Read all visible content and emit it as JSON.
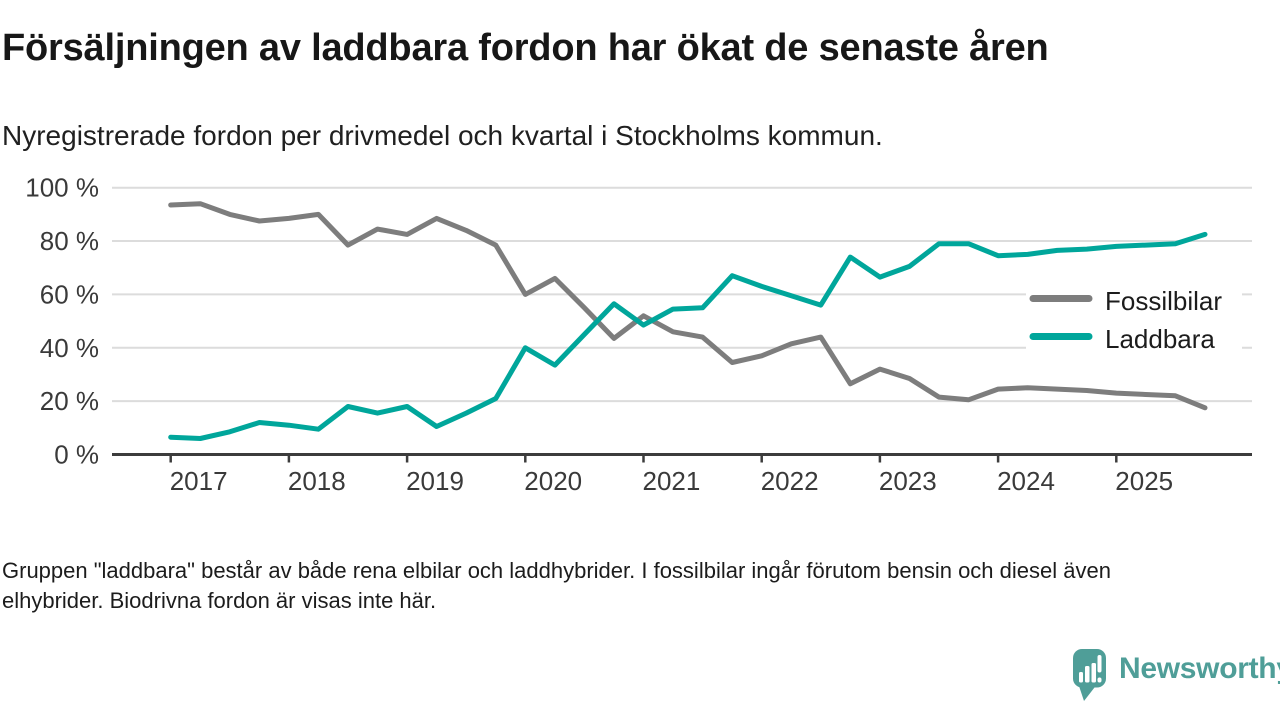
{
  "header": {
    "title": "Försäljningen av laddbara fordon har ökat de senaste åren",
    "subtitle": "Nyregistrerade fordon per drivmedel och kvartal i Stockholms kommun."
  },
  "legend": {
    "items": [
      {
        "label": "Fossilbilar",
        "color": "#7d7d7d"
      },
      {
        "label": "Laddbara",
        "color": "#00a69b"
      }
    ]
  },
  "footnote": "Gruppen \"laddbara\" består av både rena elbilar och laddhybrider. I fossilbilar ingår förutom bensin och diesel även elhybrider. Biodrivna fordon är visas inte här.",
  "logo": {
    "text": "Newsworthy",
    "color": "#4f9e98"
  },
  "colors": {
    "background": "#ffffff",
    "gridline": "#dcdcdc",
    "axis": "#3c3c3c",
    "tick_label": "#3a3a3a",
    "fossil_line": "#7d7d7d",
    "laddbara_line": "#00a69b"
  },
  "chart_data": {
    "type": "line",
    "title": "Försäljningen av laddbara fordon har ökat de senaste åren",
    "subtitle": "Nyregistrerade fordon per drivmedel och kvartal i Stockholms kommun.",
    "xlabel": "",
    "ylabel": "",
    "unit": "%",
    "ylim": [
      0,
      100
    ],
    "grid": "horizontal",
    "legend_position": "right",
    "y_tick_values": [
      100,
      80,
      60,
      40,
      20,
      0
    ],
    "y_tick_labels": [
      "100 %",
      "80 %",
      "60 %",
      "40 %",
      "20 %",
      "0 %"
    ],
    "x_tick_labels": [
      "2017",
      "2018",
      "2019",
      "2020",
      "2021",
      "2022",
      "2023",
      "2024",
      "2025"
    ],
    "x": [
      "2017 Q1",
      "2017 Q2",
      "2017 Q3",
      "2017 Q4",
      "2018 Q1",
      "2018 Q2",
      "2018 Q3",
      "2018 Q4",
      "2019 Q1",
      "2019 Q2",
      "2019 Q3",
      "2019 Q4",
      "2020 Q1",
      "2020 Q2",
      "2020 Q3",
      "2020 Q4",
      "2021 Q1",
      "2021 Q2",
      "2021 Q3",
      "2021 Q4",
      "2022 Q1",
      "2022 Q2",
      "2022 Q3",
      "2022 Q4",
      "2023 Q1",
      "2023 Q2",
      "2023 Q3",
      "2023 Q4",
      "2024 Q1",
      "2024 Q2",
      "2024 Q3",
      "2024 Q4",
      "2025 Q1",
      "2025 Q2",
      "2025 Q3",
      "2025 Q4"
    ],
    "series": [
      {
        "name": "Fossilbilar",
        "color": "#7d7d7d",
        "values": [
          93.5,
          94,
          90,
          87.5,
          88.5,
          90,
          78.5,
          84.5,
          82.5,
          88.5,
          84,
          78.5,
          60,
          66,
          55,
          43.5,
          52,
          46,
          44,
          34.5,
          37,
          41.5,
          44,
          26.5,
          32,
          28.5,
          21.5,
          20.5,
          24.5,
          25,
          24.5,
          24,
          23,
          22.5,
          22,
          17.5
        ]
      },
      {
        "name": "Laddbara",
        "color": "#00a69b",
        "values": [
          6.5,
          6,
          8.5,
          12,
          11,
          9.5,
          18,
          15.5,
          18,
          10.5,
          15.5,
          21,
          40,
          33.5,
          45,
          56.5,
          48.5,
          54.5,
          55,
          67,
          63,
          59.5,
          56,
          74,
          66.5,
          70.5,
          79,
          79,
          74.5,
          75,
          76.5,
          77,
          78,
          78.5,
          79,
          82.5
        ]
      }
    ]
  }
}
